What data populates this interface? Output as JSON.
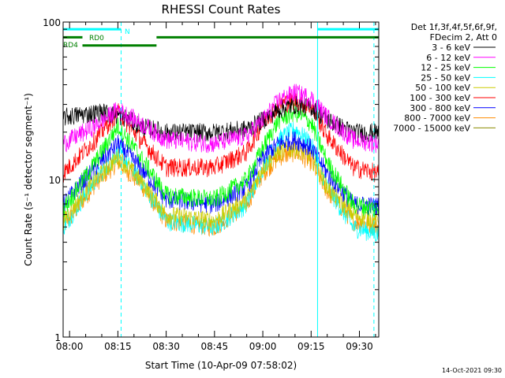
{
  "chart_data": {
    "type": "line",
    "title": "RHESSI Count Rates",
    "xlabel": "Start Time (10-Apr-09 07:58:02)",
    "ylabel": "Count Rate (s⁻¹ detector segment⁻¹)",
    "yscale": "log",
    "ylim": [
      1,
      100
    ],
    "xlim_minutes": [
      -2,
      96
    ],
    "x_ticks": [
      "08:00",
      "08:15",
      "08:30",
      "08:45",
      "09:00",
      "09:15",
      "09:30"
    ],
    "y_ticks": [
      "1",
      "10",
      "100"
    ],
    "legend_header": [
      "Det 1f,3f,4f,5f,6f,9f,",
      "FDecim 2, Att 0"
    ],
    "legend_position": "top-right",
    "series": [
      {
        "name": "3 - 6 keV",
        "color": "#000000",
        "x": [
          -2,
          10,
          17,
          22,
          30,
          45,
          55,
          60,
          65,
          70,
          75,
          80,
          88,
          96
        ],
        "values": [
          25,
          27,
          25,
          22,
          20,
          20,
          21,
          24,
          28,
          30,
          29,
          24,
          20,
          20
        ]
      },
      {
        "name": "6 - 12 keV",
        "color": "#ff00ff",
        "x": [
          -2,
          8,
          15,
          22,
          30,
          45,
          55,
          60,
          65,
          70,
          75,
          80,
          88,
          96
        ],
        "values": [
          17,
          22,
          28,
          23,
          18,
          17,
          19,
          24,
          32,
          36,
          33,
          25,
          18,
          17
        ]
      },
      {
        "name": "12 - 25 keV",
        "color": "#00ff00",
        "x": [
          -2,
          8,
          15,
          22,
          30,
          45,
          55,
          60,
          65,
          70,
          75,
          80,
          88,
          96
        ],
        "values": [
          6.5,
          13,
          22,
          14,
          8,
          7.5,
          10,
          16,
          24,
          27,
          23,
          13,
          7,
          6.5
        ]
      },
      {
        "name": "25 - 50 keV",
        "color": "#00ffff",
        "x": [
          -2,
          8,
          15,
          22,
          30,
          45,
          55,
          60,
          65,
          70,
          75,
          80,
          88,
          96
        ],
        "values": [
          5,
          10,
          15,
          10,
          5.5,
          5,
          7,
          12,
          18,
          21,
          17,
          9,
          5,
          4.5
        ]
      },
      {
        "name": "50 - 100 keV",
        "color": "#cccc00",
        "x": [
          -2,
          8,
          15,
          22,
          30,
          45,
          55,
          60,
          65,
          70,
          75,
          80,
          88,
          96
        ],
        "values": [
          5.5,
          10,
          14,
          10,
          6,
          5.5,
          7.5,
          12,
          15,
          16,
          14,
          9,
          6,
          5.5
        ]
      },
      {
        "name": "100 - 300 keV",
        "color": "#ff0000",
        "x": [
          -2,
          8,
          15,
          22,
          30,
          45,
          55,
          60,
          65,
          70,
          75,
          80,
          88,
          96
        ],
        "values": [
          11,
          18,
          27,
          18,
          12,
          12,
          15,
          23,
          30,
          32,
          29,
          19,
          12,
          11
        ]
      },
      {
        "name": "300 - 800 keV",
        "color": "#0000ff",
        "x": [
          -2,
          8,
          15,
          22,
          30,
          45,
          55,
          60,
          65,
          70,
          75,
          80,
          88,
          96
        ],
        "values": [
          7,
          12,
          17,
          12,
          7.5,
          7,
          9,
          14,
          17,
          18,
          16,
          11,
          7,
          6.8
        ]
      },
      {
        "name": "800 - 7000 keV",
        "color": "#ff8c00",
        "x": [
          -2,
          8,
          15,
          22,
          30,
          45,
          55,
          60,
          65,
          70,
          75,
          80,
          88,
          96
        ],
        "values": [
          5,
          9.5,
          13,
          9.5,
          5.5,
          5,
          7,
          11,
          14,
          15,
          13,
          8.5,
          5.5,
          5
        ]
      },
      {
        "name": "7000 - 15000 keV",
        "color": "#8b8b00",
        "x": [
          -2,
          96
        ],
        "values": [
          null,
          null
        ]
      }
    ],
    "annotations": {
      "bars": [
        {
          "label": "N",
          "color": "#00ffff",
          "segments": [
            [
              -2,
              16
            ],
            [
              77,
              96
            ]
          ],
          "level": 90
        },
        {
          "label": "RD0",
          "color": "#008000",
          "segments": [
            [
              -2,
              4
            ],
            [
              27,
              96
            ]
          ],
          "level": 80
        },
        {
          "label": "RD4",
          "color": "#008000",
          "segments": [
            [
              4,
              27
            ]
          ],
          "level": 71
        }
      ],
      "vlines_solid_minutes": [
        -2,
        77
      ],
      "vlines_dashed_minutes": [
        16,
        94.5
      ]
    },
    "grid": false
  },
  "footer_timestamp": "14-Oct-2021 09:30"
}
